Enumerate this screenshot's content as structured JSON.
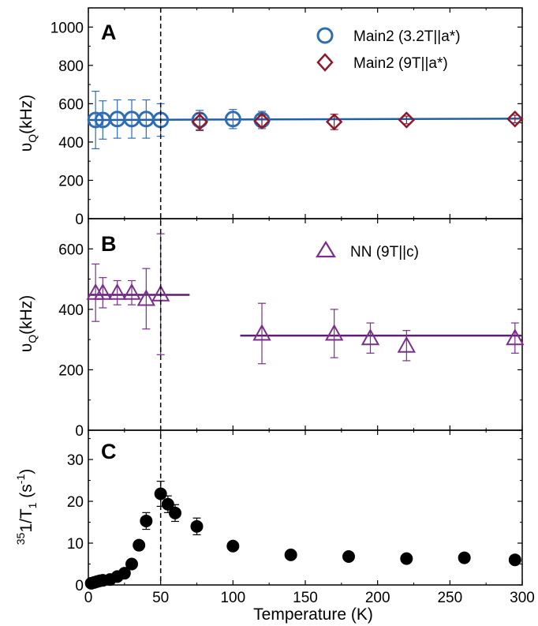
{
  "chart_data": [
    {
      "panel": "A",
      "type": "scatter",
      "ylabel": "υQ(kHz)",
      "xlim": [
        0,
        300
      ],
      "ylim": [
        0,
        1100
      ],
      "yticks": [
        0,
        200,
        400,
        600,
        800,
        1000
      ],
      "series": [
        {
          "name": "Main2 (3.2T||a*)",
          "marker": "circle",
          "color": "#2f6db3",
          "points": [
            {
              "x": 5,
              "y": 515,
              "err": 150
            },
            {
              "x": 10,
              "y": 515,
              "err": 100
            },
            {
              "x": 20,
              "y": 520,
              "err": 100
            },
            {
              "x": 30,
              "y": 520,
              "err": 100
            },
            {
              "x": 40,
              "y": 520,
              "err": 100
            },
            {
              "x": 50,
              "y": 515,
              "err": 85
            },
            {
              "x": 77,
              "y": 515,
              "err": 50
            },
            {
              "x": 100,
              "y": 520,
              "err": 50
            },
            {
              "x": 120,
              "y": 515,
              "err": 45
            }
          ]
        },
        {
          "name": "Main2 (9T||a*)",
          "marker": "diamond",
          "color": "#8b1a2e",
          "points": [
            {
              "x": 77,
              "y": 505,
              "err": 45
            },
            {
              "x": 120,
              "y": 510,
              "err": 30
            },
            {
              "x": 170,
              "y": 505,
              "err": 40
            },
            {
              "x": 220,
              "y": 515,
              "err": 20
            },
            {
              "x": 295,
              "y": 520,
              "err": 20
            }
          ]
        }
      ],
      "fit_lines": [
        {
          "x": [
            0,
            300
          ],
          "y": [
            515,
            522
          ],
          "color": "#1f5fa6"
        }
      ]
    },
    {
      "panel": "B",
      "type": "scatter",
      "ylabel": "υQ(kHz)",
      "xlim": [
        0,
        300
      ],
      "ylim": [
        0,
        700
      ],
      "yticks": [
        0,
        200,
        400,
        600
      ],
      "series": [
        {
          "name": "NN (9T||c)",
          "marker": "triangle",
          "color": "#7a2f8c",
          "points": [
            {
              "x": 5,
              "y": 455,
              "err": 95
            },
            {
              "x": 10,
              "y": 455,
              "err": 50
            },
            {
              "x": 20,
              "y": 455,
              "err": 40
            },
            {
              "x": 30,
              "y": 455,
              "err": 40
            },
            {
              "x": 40,
              "y": 435,
              "err": 100
            },
            {
              "x": 50,
              "y": 450,
              "err": 200
            },
            {
              "x": 120,
              "y": 320,
              "err": 100
            },
            {
              "x": 170,
              "y": 320,
              "err": 80
            },
            {
              "x": 195,
              "y": 305,
              "err": 50
            },
            {
              "x": 220,
              "y": 280,
              "err": 50
            },
            {
              "x": 295,
              "y": 305,
              "err": 50
            }
          ]
        }
      ],
      "fit_lines": [
        {
          "x": [
            0,
            70
          ],
          "y": [
            448,
            448
          ],
          "color": "#5b1f6e"
        },
        {
          "x": [
            105,
            300
          ],
          "y": [
            313,
            313
          ],
          "color": "#5b1f6e"
        }
      ]
    },
    {
      "panel": "C",
      "type": "scatter",
      "ylabel_parts": {
        "pre_sup": "35",
        "main": "1/T",
        "sub": "1",
        "mid": " (s",
        "sup": "-1",
        "end": ")"
      },
      "xlabel": "Temperature (K)",
      "xlim": [
        0,
        300
      ],
      "ylim": [
        0,
        37
      ],
      "xticks": [
        0,
        50,
        100,
        150,
        200,
        250,
        300
      ],
      "yticks": [
        0,
        10,
        20,
        30
      ],
      "series": [
        {
          "marker": "filled-circle",
          "color": "#000000",
          "points": [
            {
              "x": 2,
              "y": 0.4
            },
            {
              "x": 4,
              "y": 0.6
            },
            {
              "x": 6,
              "y": 0.8
            },
            {
              "x": 8,
              "y": 1.0
            },
            {
              "x": 10,
              "y": 1.1
            },
            {
              "x": 15,
              "y": 1.3
            },
            {
              "x": 20,
              "y": 2.0
            },
            {
              "x": 25,
              "y": 2.8
            },
            {
              "x": 30,
              "y": 5.0
            },
            {
              "x": 35,
              "y": 9.5
            },
            {
              "x": 40,
              "y": 15.3,
              "err": 2.0
            },
            {
              "x": 50,
              "y": 21.8,
              "err": 3.0
            },
            {
              "x": 55,
              "y": 19.3,
              "err": 2.0
            },
            {
              "x": 60,
              "y": 17.2,
              "err": 2.0
            },
            {
              "x": 75,
              "y": 14.0,
              "err": 2.0
            },
            {
              "x": 100,
              "y": 9.3
            },
            {
              "x": 140,
              "y": 7.2
            },
            {
              "x": 180,
              "y": 6.8
            },
            {
              "x": 220,
              "y": 6.3
            },
            {
              "x": 260,
              "y": 6.5
            },
            {
              "x": 295,
              "y": 6.0
            }
          ]
        }
      ]
    }
  ],
  "dashed_line_x": 50,
  "legend": {
    "a1": "Main2 (3.2T||a*)",
    "a2": "Main2 (9T||a*)",
    "b1": "NN (9T||c)"
  }
}
